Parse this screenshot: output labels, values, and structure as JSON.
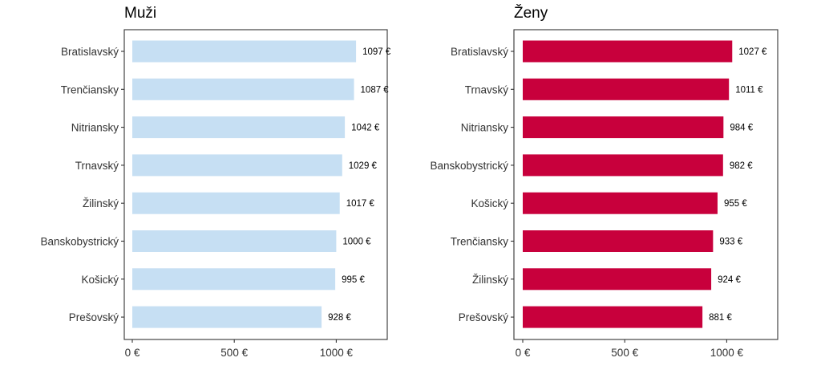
{
  "chart_data": [
    {
      "type": "bar",
      "orientation": "horizontal",
      "title": "Muži",
      "categories": [
        "Bratislavský",
        "Trenčiansky",
        "Nitriansky",
        "Trnavský",
        "Žilinský",
        "Banskobystrický",
        "Košický",
        "Prešovský"
      ],
      "values": [
        1097,
        1087,
        1042,
        1029,
        1017,
        1000,
        995,
        928
      ],
      "value_labels": [
        "1097 €",
        "1087 €",
        "1042 €",
        "1029 €",
        "1017 €",
        "1000 €",
        "995 €",
        "928 €"
      ],
      "xlim": [
        0,
        1250
      ],
      "x_ticks": [
        0,
        500,
        1000
      ],
      "x_tick_labels": [
        "0 €",
        "500 €",
        "1000 €"
      ],
      "color": "#c6dff3",
      "grid": false
    },
    {
      "type": "bar",
      "orientation": "horizontal",
      "title": "Ženy",
      "categories": [
        "Bratislavský",
        "Trnavský",
        "Nitriansky",
        "Banskobystrický",
        "Košický",
        "Trenčiansky",
        "Žilinský",
        "Prešovský"
      ],
      "values": [
        1027,
        1011,
        984,
        982,
        955,
        933,
        924,
        881
      ],
      "value_labels": [
        "1027 €",
        "1011 €",
        "984 €",
        "982 €",
        "955 €",
        "933 €",
        "924 €",
        "881 €"
      ],
      "xlim": [
        0,
        1250
      ],
      "x_ticks": [
        0,
        500,
        1000
      ],
      "x_tick_labels": [
        "0 €",
        "500 €",
        "1000 €"
      ],
      "color": "#c8003c",
      "grid": false
    }
  ]
}
